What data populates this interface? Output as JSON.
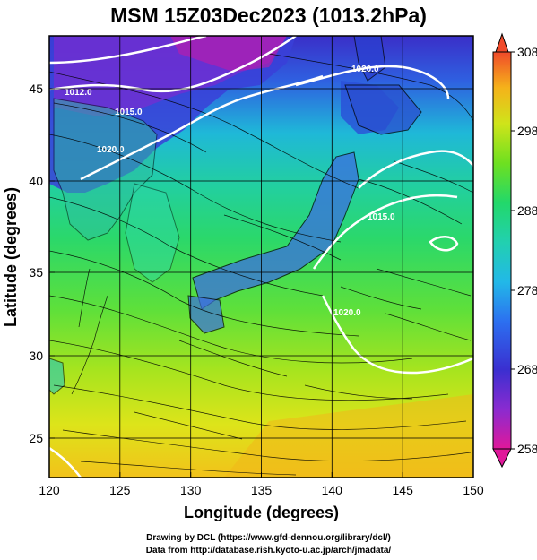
{
  "title": "MSM 15Z03Dec2023 (1013.2hPa)",
  "map": {
    "x_label": "Longitude (degrees)",
    "y_label": "Latitude  (degrees)",
    "x_ticks": [
      "120",
      "125",
      "130",
      "135",
      "140",
      "145",
      "150"
    ],
    "y_ticks": [
      "25",
      "30",
      "35",
      "40",
      "45"
    ],
    "lon_range": [
      120,
      150
    ],
    "lat_range": [
      22.4,
      47.6
    ],
    "isobar_labels": [
      "1012.0",
      "1015.0",
      "1020.0",
      "1020.0",
      "1015.0",
      "1020.0"
    ],
    "fill": "temperature",
    "overlays": [
      "streamlines",
      "isobars (white)",
      "coastlines",
      "lat/lon grid"
    ]
  },
  "colorbar": {
    "labels": [
      "308",
      "298",
      "288",
      "278",
      "268",
      "258"
    ],
    "range": [
      258,
      308
    ],
    "extends": "both",
    "colors": [
      "#e0189a",
      "#7a2bd0",
      "#2a3fcf",
      "#2d8ff0",
      "#22d0c8",
      "#22d86a",
      "#7ae21c",
      "#d6e81a",
      "#f5b21a",
      "#f0472a"
    ]
  },
  "credits": {
    "line1": "Drawing by DCL (https://www.gfd-dennou.org/library/dcl/)",
    "line2": "Data from http://database.rish.kyoto-u.ac.jp/arch/jmadata/"
  }
}
